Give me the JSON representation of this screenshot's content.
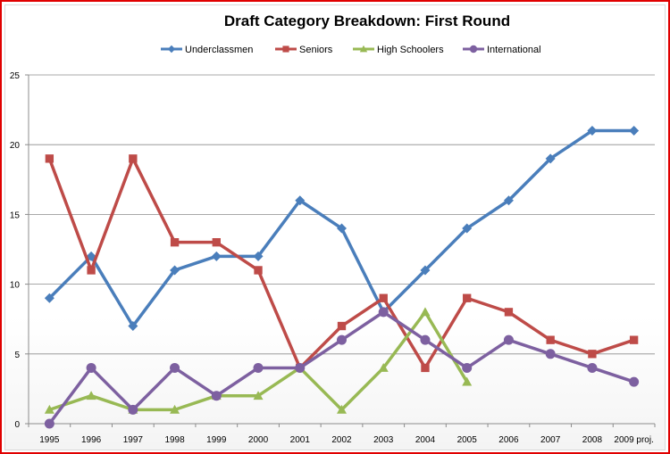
{
  "chart_data": {
    "type": "line",
    "title": "Draft Category Breakdown:  First Round",
    "xlabel": "",
    "ylabel": "",
    "categories": [
      "1995",
      "1996",
      "1997",
      "1998",
      "1999",
      "2000",
      "2001",
      "2002",
      "2003",
      "2004",
      "2005",
      "2006",
      "2007",
      "2008",
      "2009 proj."
    ],
    "ylim": [
      0,
      25
    ],
    "yticks": [
      0,
      5,
      10,
      15,
      20,
      25
    ],
    "grid": "horizontal",
    "legend": "top",
    "series": [
      {
        "name": "Underclassmen",
        "color": "#4a7ebb",
        "marker": "diamond",
        "values": [
          9,
          12,
          7,
          11,
          12,
          12,
          16,
          14,
          8,
          11,
          14,
          16,
          19,
          21,
          21
        ]
      },
      {
        "name": "Seniors",
        "color": "#be4b48",
        "marker": "square",
        "values": [
          19,
          11,
          19,
          13,
          13,
          11,
          4,
          7,
          9,
          4,
          9,
          8,
          6,
          5,
          6
        ]
      },
      {
        "name": "High Schoolers",
        "color": "#98b954",
        "marker": "triangle",
        "values": [
          1,
          2,
          1,
          1,
          2,
          2,
          4,
          1,
          4,
          8,
          3,
          null,
          null,
          null,
          null
        ]
      },
      {
        "name": "International",
        "color": "#7d60a0",
        "marker": "circle",
        "values": [
          0,
          4,
          1,
          4,
          2,
          4,
          4,
          6,
          8,
          6,
          4,
          6,
          5,
          4,
          3
        ]
      }
    ]
  }
}
